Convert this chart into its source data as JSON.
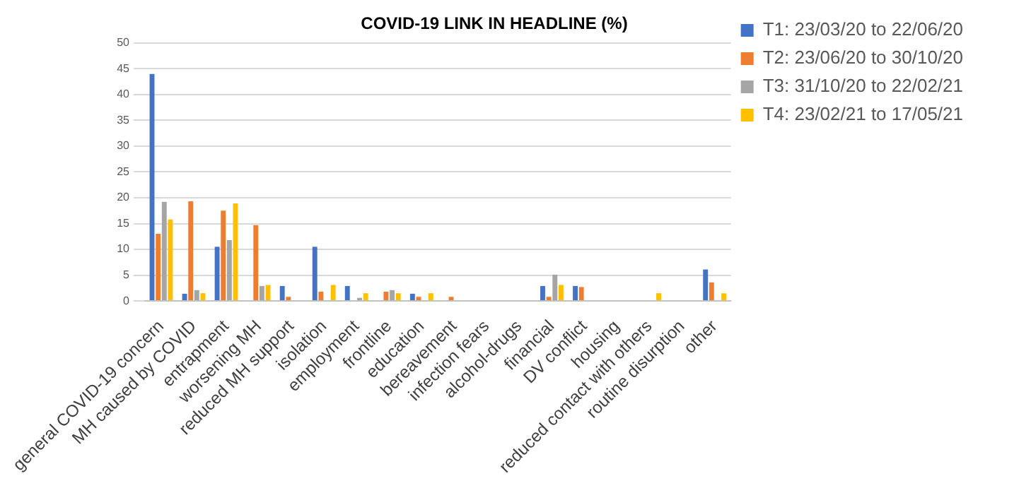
{
  "chart_data": {
    "type": "bar",
    "title": "COVID-19 LINK IN HEADLINE (%)",
    "categories": [
      "general COVID-19 concern",
      "MH caused by COVID",
      "entrapment",
      "worsening MH",
      "reduced MH support",
      "isolation",
      "employment",
      "frontline",
      "education",
      "bereavement",
      "infection fears",
      "alcohol-drugs",
      "financial",
      "DV conflict",
      "housing",
      "reduced contact with others",
      "routine disurption",
      "other"
    ],
    "series": [
      {
        "name": "T1: 23/03/20 to 22/06/20",
        "color": "#4472c4",
        "values": [
          44,
          1.4,
          10.5,
          0,
          2.9,
          10.5,
          2.9,
          0,
          1.4,
          0,
          0,
          0,
          2.9,
          2.9,
          0,
          0,
          0,
          6.1
        ]
      },
      {
        "name": "T2: 23/06/20 to 30/10/20",
        "color": "#ed7d31",
        "values": [
          13,
          19.3,
          17.5,
          14.7,
          0.8,
          1.8,
          0,
          1.8,
          0.8,
          0.8,
          0,
          0,
          0.8,
          2.7,
          0,
          0,
          0,
          3.6
        ]
      },
      {
        "name": "T3: 31/10/20 to 22/02/21",
        "color": "#a5a5a5",
        "values": [
          19.2,
          2.1,
          11.8,
          2.9,
          0,
          0,
          0.6,
          2.1,
          0,
          0,
          0,
          0,
          5.1,
          0,
          0,
          0,
          0,
          0
        ]
      },
      {
        "name": "T4: 23/02/21 to 17/05/21",
        "color": "#ffc000",
        "values": [
          15.8,
          1.5,
          18.9,
          3.1,
          0,
          3.1,
          1.5,
          1.5,
          1.5,
          0,
          0,
          0,
          3.1,
          0,
          0,
          1.5,
          0,
          1.5
        ]
      }
    ],
    "ylim": [
      0,
      50
    ],
    "yticks": [
      0,
      5,
      10,
      15,
      20,
      25,
      30,
      35,
      40,
      45,
      50
    ],
    "grid": "y",
    "legend": "top right"
  }
}
